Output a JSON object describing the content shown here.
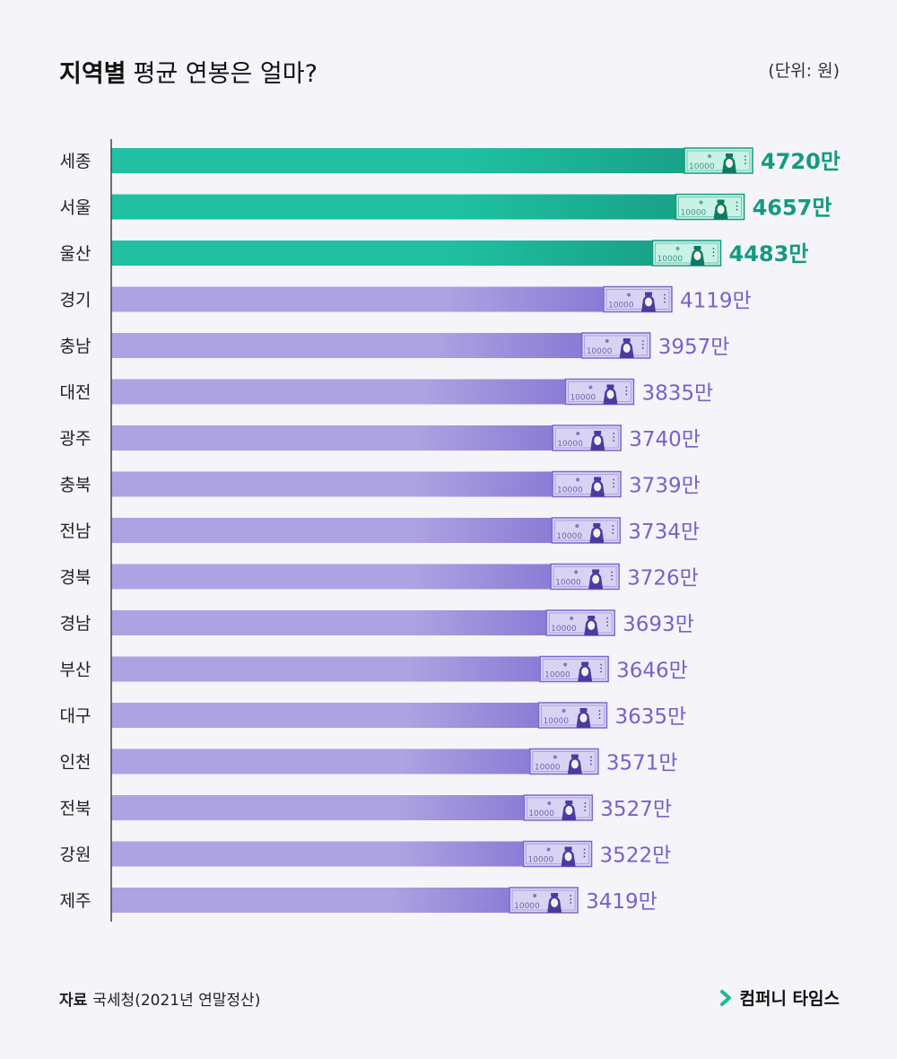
{
  "header": {
    "title_bold": "지역별",
    "title_rest": "평균 연봉은 얼마?",
    "unit": "(단위: 원)"
  },
  "footer": {
    "source_label": "자료",
    "source_text": "국세청(2021년 연말정산)",
    "brand": "컴퍼니 타임스"
  },
  "colors": {
    "top_bar_start": "#1fc1a2",
    "top_bar_end": "#169a82",
    "top_text": "#149a80",
    "bar_start": "#aea3e2",
    "bar_end": "#7b6bd0",
    "text": "#7563c7",
    "note_fill": "#d9d3f3",
    "note_face": "#4b3ba0",
    "note_fill_top": "#c9f1e6",
    "note_face_top": "#0e7a63",
    "axis": "#444444",
    "brand_accent": "#1fb897"
  },
  "icons": {
    "banknote": "korean-10000-won-banknote-icon",
    "brand": "chevron-right-icon"
  },
  "banknote_label": "10000",
  "value_suffix": "만",
  "chart_data": {
    "type": "bar",
    "orientation": "horizontal",
    "title": "지역별 평균 연봉은 얼마?",
    "unit": "(단위: 원)",
    "highlight_top": 3,
    "xlim": [
      0,
      4720
    ],
    "categories": [
      "세종",
      "서울",
      "울산",
      "경기",
      "충남",
      "대전",
      "광주",
      "충북",
      "전남",
      "경북",
      "경남",
      "부산",
      "대구",
      "인천",
      "전북",
      "강원",
      "제주"
    ],
    "values": [
      4720,
      4657,
      4483,
      4119,
      3957,
      3835,
      3740,
      3739,
      3734,
      3726,
      3693,
      3646,
      3635,
      3571,
      3527,
      3522,
      3419
    ],
    "labels": [
      "4720만",
      "4657만",
      "4483만",
      "4119만",
      "3957만",
      "3835만",
      "3740만",
      "3739만",
      "3734만",
      "3726만",
      "3693만",
      "3646만",
      "3635만",
      "3571만",
      "3527만",
      "3522만",
      "3419만"
    ]
  }
}
